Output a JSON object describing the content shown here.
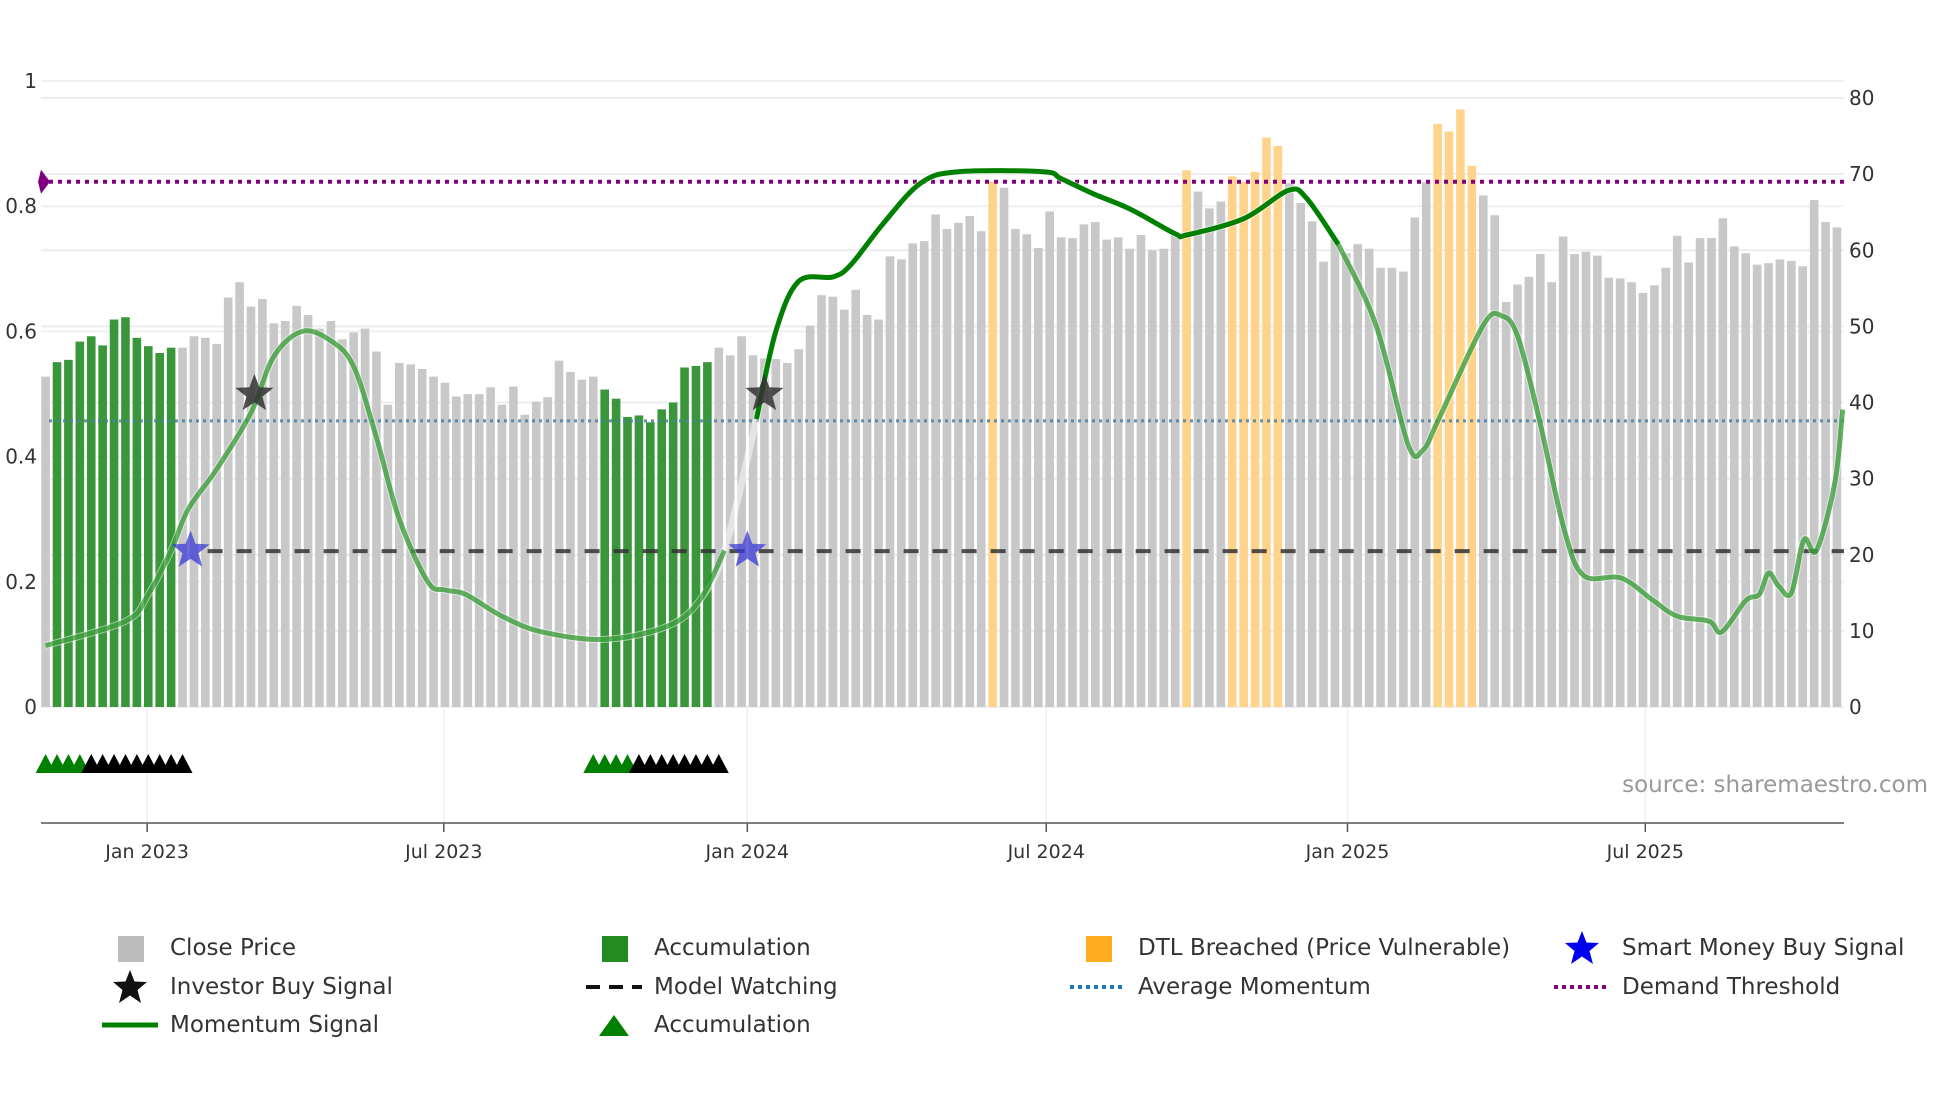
{
  "chart_data": {
    "type": "bar",
    "source": "source: sharemaestro.com",
    "left_axis": {
      "range": [
        0,
        1
      ],
      "ticks": [
        "0",
        "0.2",
        "0.4",
        "0.6",
        "0.8",
        "1"
      ]
    },
    "right_axis": {
      "range": [
        0,
        80
      ],
      "ticks": [
        "0",
        "10",
        "20",
        "30",
        "40",
        "50",
        "60",
        "70",
        "80"
      ]
    },
    "x_ticks": [
      {
        "label": "Jan 2023",
        "bar_index": 8.9
      },
      {
        "label": "Jul 2023",
        "bar_index": 34.9
      },
      {
        "label": "Jan 2024",
        "bar_index": 61.5
      },
      {
        "label": "Jul 2024",
        "bar_index": 87.7
      },
      {
        "label": "Jan 2025",
        "bar_index": 114.1
      },
      {
        "label": "Jul 2025",
        "bar_index": 140.2
      }
    ],
    "close_price": [
      43.4,
      45.3,
      45.6,
      48.0,
      48.7,
      47.5,
      50.9,
      51.2,
      48.5,
      47.4,
      46.5,
      47.2,
      47.2,
      48.7,
      48.5,
      47.7,
      53.8,
      55.8,
      52.6,
      53.6,
      50.4,
      50.7,
      52.7,
      51.5,
      49.7,
      50.7,
      48.3,
      49.2,
      49.7,
      46.7,
      39.7,
      45.2,
      45.0,
      44.4,
      43.4,
      42.6,
      40.8,
      41.1,
      41.1,
      42.0,
      39.7,
      42.1,
      38.4,
      40.1,
      40.7,
      45.5,
      44.0,
      43.0,
      43.4,
      41.7,
      40.5,
      38.1,
      38.3,
      37.4,
      39.1,
      40.0,
      44.6,
      44.8,
      45.3,
      47.2,
      46.2,
      48.7,
      46.2,
      45.8,
      45.7,
      45.2,
      47.0,
      50.1,
      54.1,
      53.9,
      52.2,
      54.8,
      51.5,
      50.9,
      59.2,
      58.8,
      60.9,
      61.2,
      64.7,
      62.8,
      63.6,
      64.5,
      62.5,
      69.0,
      68.2,
      62.8,
      62.1,
      60.3,
      65.1,
      61.7,
      61.6,
      63.4,
      63.7,
      61.4,
      61.7,
      60.2,
      62.0,
      60.0,
      60.2,
      62.3,
      70.5,
      67.7,
      65.5,
      66.4,
      69.7,
      69.0,
      70.3,
      74.8,
      73.7,
      68.8,
      66.2,
      63.8,
      58.5,
      61.4,
      59.6,
      60.8,
      60.2,
      57.7,
      57.7,
      57.2,
      64.3,
      68.9,
      76.6,
      75.6,
      78.5,
      71.1,
      67.2,
      64.6,
      53.2,
      55.5,
      56.5,
      59.5,
      55.8,
      61.8,
      59.5,
      59.8,
      59.3,
      56.4,
      56.3,
      55.8,
      54.4,
      55.4,
      57.7,
      61.9,
      58.4,
      61.6,
      61.6,
      64.2,
      60.5,
      59.6,
      58.1,
      58.3,
      58.8,
      58.6,
      57.9,
      66.6,
      63.7,
      63.0
    ],
    "accumulation_bars": [
      [
        2,
        12
      ],
      [
        50,
        59
      ]
    ],
    "dtl_breached_bars": [
      84,
      101,
      105,
      106,
      107,
      108,
      109,
      123,
      124,
      125,
      126
    ],
    "momentum_signal": [
      [
        1,
        0.098
      ],
      [
        8,
        0.137
      ],
      [
        10,
        0.18
      ],
      [
        12,
        0.25
      ],
      [
        13.5,
        0.316
      ],
      [
        16,
        0.38
      ],
      [
        19,
        0.47
      ],
      [
        21,
        0.56
      ],
      [
        23.5,
        0.6
      ],
      [
        26,
        0.585
      ],
      [
        28,
        0.544
      ],
      [
        30,
        0.43
      ],
      [
        32,
        0.3
      ],
      [
        34.5,
        0.2
      ],
      [
        36,
        0.187
      ],
      [
        37.8,
        0.18
      ],
      [
        41,
        0.145
      ],
      [
        44.5,
        0.12
      ],
      [
        50,
        0.108
      ],
      [
        55.5,
        0.129
      ],
      [
        58.3,
        0.17
      ],
      [
        60.5,
        0.25
      ],
      [
        63.3,
        0.46
      ],
      [
        65,
        0.6
      ],
      [
        67,
        0.68
      ],
      [
        70,
        0.687
      ],
      [
        71.6,
        0.707
      ],
      [
        74.4,
        0.772
      ],
      [
        77.7,
        0.837
      ],
      [
        81,
        0.855
      ],
      [
        88.4,
        0.855
      ],
      [
        90,
        0.844
      ],
      [
        92.8,
        0.82
      ],
      [
        96.1,
        0.795
      ],
      [
        100,
        0.756
      ],
      [
        101,
        0.754
      ],
      [
        106,
        0.78
      ],
      [
        109.9,
        0.825
      ],
      [
        111.5,
        0.813
      ],
      [
        114.3,
        0.739
      ],
      [
        117.6,
        0.61
      ],
      [
        120.4,
        0.42
      ],
      [
        121.7,
        0.41
      ],
      [
        123.1,
        0.46
      ],
      [
        127,
        0.61
      ],
      [
        128.6,
        0.625
      ],
      [
        130,
        0.593
      ],
      [
        131.9,
        0.46
      ],
      [
        134.1,
        0.283
      ],
      [
        135.8,
        0.21
      ],
      [
        139.1,
        0.206
      ],
      [
        141.9,
        0.17
      ],
      [
        144,
        0.145
      ],
      [
        146.8,
        0.137
      ],
      [
        147.9,
        0.12
      ],
      [
        150,
        0.17
      ],
      [
        151.2,
        0.18
      ],
      [
        152,
        0.214
      ],
      [
        152.9,
        0.193
      ],
      [
        154,
        0.182
      ],
      [
        155.1,
        0.267
      ],
      [
        156.2,
        0.25
      ],
      [
        157.8,
        0.357
      ],
      [
        158.5,
        0.475
      ]
    ],
    "momentum_strong_range": [
      63,
      114
    ],
    "average_momentum": 0.457,
    "demand_threshold": 0.839,
    "model_watching": {
      "value": 0.249,
      "from_bar": 15.2
    },
    "investor_buy_signals": [
      [
        19.3,
        0.5
      ],
      [
        64,
        0.5
      ]
    ],
    "smart_money_buy_signals": [
      [
        13.7,
        0.25
      ],
      [
        62.5,
        0.25
      ]
    ],
    "accumulation_markers": {
      "green": [
        1,
        2,
        3,
        4,
        49,
        50,
        51,
        52
      ],
      "black": [
        5,
        6,
        7,
        8,
        9,
        10,
        11,
        12,
        13,
        53,
        54,
        55,
        56,
        57,
        58,
        59,
        60
      ]
    },
    "colors": {
      "price": "#c8c8c8",
      "accumulation": "#3a963a",
      "dtl": "#ffd38a",
      "momentum": "#008000",
      "avg": "#4a7fa8",
      "demand": "#800080",
      "watch": "#333333",
      "investor": "#333333",
      "smart": "#3b3bd6"
    }
  },
  "legend": [
    {
      "label": "Close Price",
      "icon": "gray-square"
    },
    {
      "label": "Accumulation",
      "icon": "green-square"
    },
    {
      "label": "DTL Breached (Price Vulnerable)",
      "icon": "orange-square"
    },
    {
      "label": "Smart Money Buy Signal",
      "icon": "blue-star"
    },
    {
      "label": "Investor Buy Signal",
      "icon": "black-star"
    },
    {
      "label": "Model Watching",
      "icon": "black-dash-line"
    },
    {
      "label": "Average Momentum",
      "icon": "blue-dotted-line"
    },
    {
      "label": "Demand Threshold",
      "icon": "purple-dotted-line"
    },
    {
      "label": "Momentum Signal",
      "icon": "green-line"
    },
    {
      "label": "Accumulation",
      "icon": "green-triangle"
    }
  ]
}
